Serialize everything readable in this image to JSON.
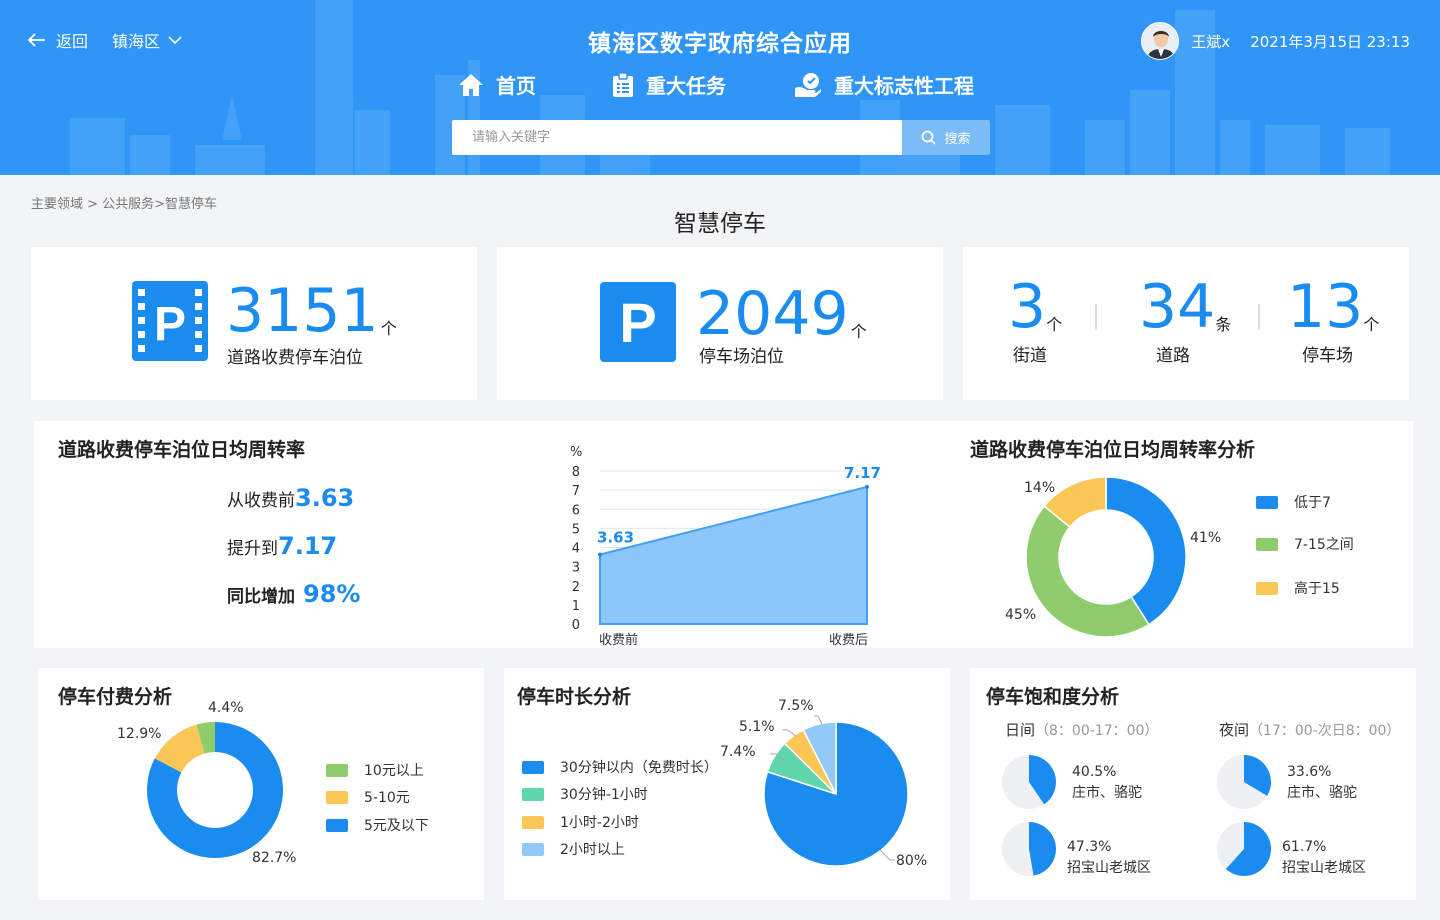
{
  "header": {
    "back_label": "返回",
    "district": "镇海区",
    "app_title": "镇海区数字政府综合应用",
    "nav": [
      {
        "label": "首页",
        "icon": "home-icon"
      },
      {
        "label": "重大任务",
        "icon": "clipboard-icon"
      },
      {
        "label": "重大标志性工程",
        "icon": "handshake-icon"
      }
    ],
    "search_placeholder": "请输入关键字",
    "search_button": "搜索",
    "user_name": "王斌x",
    "datetime": "2021年3月15日  23:13"
  },
  "breadcrumb": "主要领域 > 公共服务>智慧停车",
  "page_title": "智慧停车",
  "stats": {
    "road_berths": {
      "value": "3151",
      "unit": "个",
      "label": "道路收费停车泊位"
    },
    "lot_berths": {
      "value": "2049",
      "unit": "个",
      "label": "停车场泊位"
    },
    "streets": {
      "value": "3",
      "unit": "个",
      "label": "街道"
    },
    "roads": {
      "value": "34",
      "unit": "条",
      "label": "道路"
    },
    "lots": {
      "value": "13",
      "unit": "个",
      "label": "停车场"
    }
  },
  "turnover": {
    "title": "道路收费停车泊位日均周转率",
    "line1_prefix": "从收费前",
    "line1_value": "3.63",
    "line2_prefix": "提升到",
    "line2_value": "7.17",
    "line3_prefix": "同比增加",
    "line3_value": "98%"
  },
  "turnover_chart": {
    "unit": "%",
    "ticks": [
      "8",
      "7",
      "6",
      "5",
      "4",
      "3",
      "2",
      "1",
      "0"
    ],
    "x_labels": [
      "收费前",
      "收费后"
    ],
    "value_labels": [
      "3.63",
      "7.17"
    ]
  },
  "turnover_analysis": {
    "title": "道路收费停车泊位日均周转率分析",
    "legend": [
      "低于7",
      "7-15之间",
      "高于15"
    ],
    "labels": [
      "41%",
      "45%",
      "14%"
    ]
  },
  "payment": {
    "title": "停车付费分析",
    "legend": [
      "10元以上",
      "5-10元",
      "5元及以下"
    ],
    "labels": [
      "4.4%",
      "12.9%",
      "82.7%"
    ]
  },
  "duration": {
    "title": "停车时长分析",
    "legend": [
      "30分钟以内（免费时长）",
      "30分钟-1小时",
      "1小时-2小时",
      "2小时以上"
    ],
    "labels": [
      "80%",
      "7.4%",
      "5.1%",
      "7.5%"
    ]
  },
  "saturation": {
    "title": "停车饱和度分析",
    "day_label": "日间",
    "day_range": "（8：00-17：00）",
    "night_label": "夜间",
    "night_range": "（17：00-次日8：00）",
    "items": [
      {
        "pct": "40.5%",
        "place": "庄市、骆驼"
      },
      {
        "pct": "33.6%",
        "place": "庄市、骆驼"
      },
      {
        "pct": "47.3%",
        "place": "招宝山老城区"
      },
      {
        "pct": "61.7%",
        "place": "招宝山老城区"
      }
    ]
  },
  "chart_data": [
    {
      "type": "area",
      "title": "",
      "categories": [
        "收费前",
        "收费后"
      ],
      "values": [
        3.63,
        7.17
      ],
      "ylabel": "%",
      "ylim": [
        0,
        8
      ],
      "grid": true
    },
    {
      "type": "pie",
      "title": "道路收费停车泊位日均周转率分析",
      "categories": [
        "低于7",
        "7-15之间",
        "高于15"
      ],
      "values": [
        41,
        45,
        14
      ],
      "colors": [
        "#1a8cf0",
        "#8fcd6c",
        "#f8c755"
      ],
      "legend": "right"
    },
    {
      "type": "pie",
      "title": "停车付费分析",
      "categories": [
        "10元以上",
        "5-10元",
        "5元及以下"
      ],
      "values": [
        4.4,
        12.9,
        82.7
      ],
      "colors": [
        "#8fcd6c",
        "#f8c755",
        "#1a8cf0"
      ],
      "legend": "right"
    },
    {
      "type": "pie",
      "title": "停车时长分析",
      "categories": [
        "30分钟以内（免费时长）",
        "30分钟-1小时",
        "1小时-2小时",
        "2小时以上"
      ],
      "values": [
        80,
        7.4,
        5.1,
        7.5
      ],
      "colors": [
        "#1a8cf0",
        "#5fd6ac",
        "#f8c755",
        "#93c9f6"
      ],
      "legend": "left"
    },
    {
      "type": "pie",
      "title": "停车饱和度分析",
      "categories": [
        "日间 庄市、骆驼",
        "夜间 庄市、骆驼",
        "日间 招宝山老城区",
        "夜间 招宝山老城区"
      ],
      "values": [
        40.5,
        33.6,
        47.3,
        61.7
      ],
      "colors": [
        "#1a8cf0",
        "#eef0f4"
      ]
    }
  ]
}
